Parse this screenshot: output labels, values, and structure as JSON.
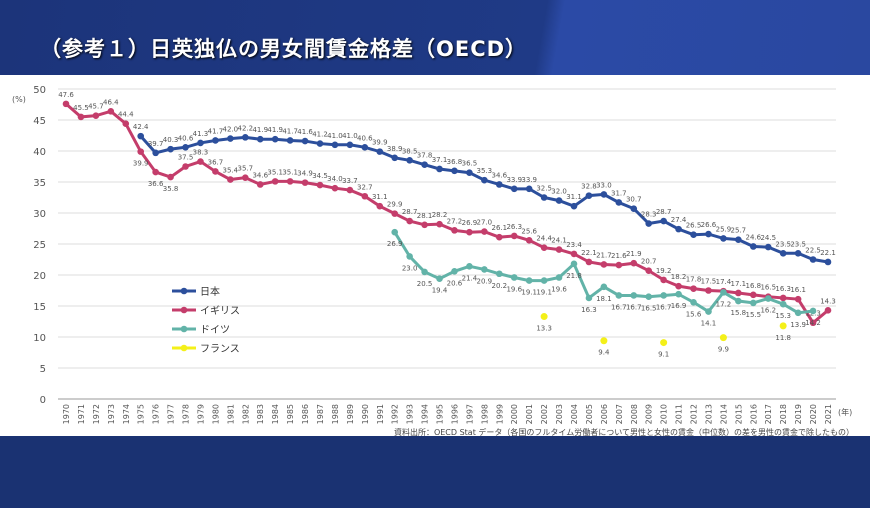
{
  "header": {
    "title": "（参考１）日英独仏の男女間賃金格差（OECD）"
  },
  "source": "資料出所：OECD Stat データ（各国のフルタイム労働者について男性と女性の賃金（中位数）の差を男性の賃金で除したもの）",
  "chart_data": {
    "type": "line",
    "title": "",
    "ylabel": "(%)",
    "xlabel": "(年)",
    "ylim": [
      0,
      50
    ],
    "yticks": [
      0,
      5,
      10,
      15,
      20,
      25,
      30,
      35,
      40,
      45,
      50
    ],
    "xlim": [
      1970,
      2021
    ],
    "grid": "horizontal",
    "legend_position": "left-middle",
    "series": [
      {
        "name": "日本",
        "color": "#2c4f9c",
        "start": 1975,
        "values": [
          42.4,
          39.7,
          40.3,
          40.6,
          41.3,
          41.7,
          42.0,
          42.2,
          41.9,
          41.9,
          41.7,
          41.6,
          41.2,
          41.0,
          41.0,
          40.6,
          39.9,
          38.9,
          38.5,
          37.8,
          37.1,
          36.8,
          36.5,
          35.3,
          34.6,
          33.9,
          33.9,
          32.5,
          32.0,
          31.1,
          32.8,
          33.0,
          31.7,
          30.7,
          28.3,
          28.7,
          27.4,
          26.5,
          26.6,
          25.9,
          25.7,
          24.6,
          24.5,
          23.5,
          23.5,
          22.5,
          22.1
        ]
      },
      {
        "name": "イギリス",
        "color": "#c43d6b",
        "start": 1970,
        "values": [
          47.6,
          45.5,
          45.7,
          46.4,
          44.4,
          39.9,
          36.6,
          35.8,
          37.5,
          38.3,
          36.7,
          35.4,
          35.7,
          34.6,
          35.1,
          35.1,
          34.9,
          34.5,
          34.0,
          33.7,
          32.7,
          31.1,
          29.9,
          28.7,
          28.1,
          28.2,
          27.2,
          26.9,
          27.0,
          26.1,
          26.3,
          25.6,
          24.4,
          24.1,
          23.4,
          22.1,
          21.7,
          21.6,
          21.9,
          20.7,
          19.2,
          18.2,
          17.8,
          17.5,
          17.4,
          17.1,
          16.8,
          16.5,
          16.3,
          16.1,
          12.3,
          14.3
        ]
      },
      {
        "name": "ドイツ",
        "color": "#62b3a8",
        "start": 1992,
        "values": [
          26.9,
          23.0,
          20.5,
          19.4,
          20.6,
          21.4,
          20.9,
          20.2,
          19.6,
          19.1,
          19.1,
          19.6,
          21.8,
          16.3,
          18.1,
          16.7,
          16.7,
          16.5,
          16.7,
          16.9,
          15.6,
          14.1,
          17.2,
          15.8,
          15.5,
          16.2,
          15.3,
          13.9,
          14.2
        ]
      },
      {
        "name": "フランス",
        "color": "#f4f019",
        "type": "scatter",
        "points": [
          [
            2002,
            13.3
          ],
          [
            2006,
            9.4
          ],
          [
            2010,
            9.1
          ],
          [
            2014,
            9.9
          ],
          [
            2018,
            11.8
          ]
        ]
      }
    ]
  }
}
